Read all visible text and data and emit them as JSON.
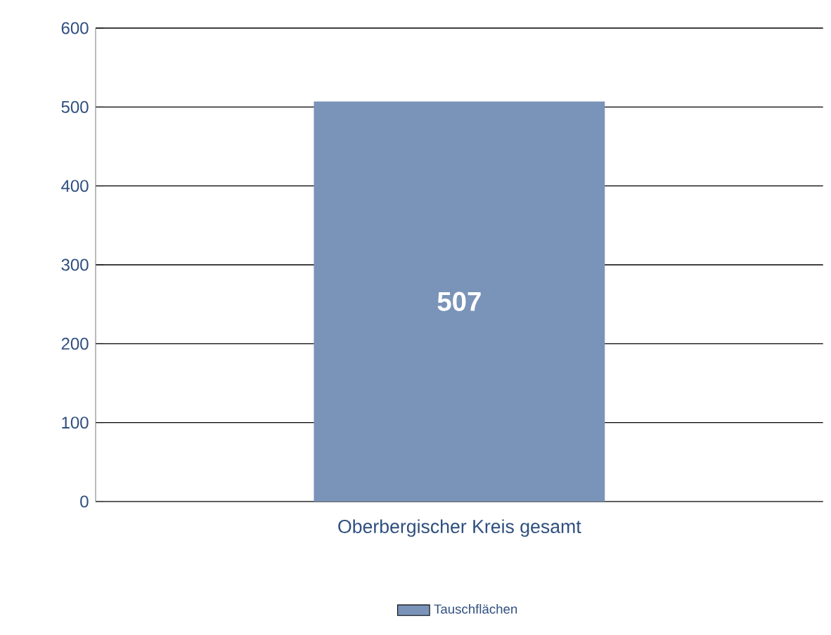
{
  "chart_data": {
    "type": "bar",
    "categories": [
      "Oberbergischer Kreis gesamt"
    ],
    "series": [
      {
        "name": "Tauschflächen",
        "color": "#7a93b8",
        "values": [
          507
        ]
      }
    ],
    "ylim": [
      0,
      600
    ],
    "yticks": [
      0,
      100,
      200,
      300,
      400,
      500,
      600
    ],
    "grid": "y",
    "data_labels": true,
    "legend": "bottom"
  }
}
